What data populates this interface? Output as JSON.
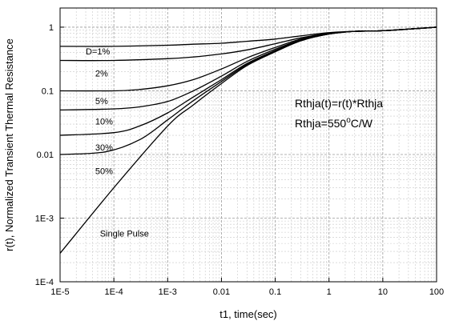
{
  "chart_data": {
    "type": "line",
    "xlabel": "t1, time(sec)",
    "ylabel": "r(t), Normalized Transient Thermal Resistance",
    "x_scale": "log",
    "y_scale": "log",
    "xlim": [
      1e-05,
      100
    ],
    "ylim": [
      0.0001,
      2
    ],
    "grid": true,
    "x_ticks": [
      {
        "value": 1e-05,
        "label": "1E-5"
      },
      {
        "value": 0.0001,
        "label": "1E-4"
      },
      {
        "value": 0.001,
        "label": "1E-3"
      },
      {
        "value": 0.01,
        "label": "0.01"
      },
      {
        "value": 0.1,
        "label": "0.1"
      },
      {
        "value": 1,
        "label": "1"
      },
      {
        "value": 10,
        "label": "10"
      },
      {
        "value": 100,
        "label": "100"
      }
    ],
    "y_ticks": [
      {
        "value": 0.0001,
        "label": "1E-4"
      },
      {
        "value": 0.001,
        "label": "1E-3"
      },
      {
        "value": 0.01,
        "label": "0.01"
      },
      {
        "value": 0.1,
        "label": "0.1"
      },
      {
        "value": 1,
        "label": "1"
      }
    ],
    "series": [
      {
        "name": "D=1%",
        "label_at": [
          3e-05,
          0.42
        ],
        "x": [
          1e-05,
          0.0001,
          0.001,
          0.003,
          0.01,
          0.03,
          0.1,
          0.3,
          1,
          3,
          10,
          100
        ],
        "y": [
          0.5,
          0.5,
          0.52,
          0.54,
          0.56,
          0.6,
          0.65,
          0.73,
          0.82,
          0.86,
          0.88,
          1.0
        ]
      },
      {
        "name": "2%",
        "label_at": [
          4.5e-05,
          0.19
        ],
        "x": [
          1e-05,
          0.0001,
          0.001,
          0.003,
          0.01,
          0.03,
          0.1,
          0.3,
          1,
          3,
          10,
          100
        ],
        "y": [
          0.3,
          0.3,
          0.32,
          0.34,
          0.38,
          0.44,
          0.55,
          0.68,
          0.8,
          0.86,
          0.88,
          1.0
        ]
      },
      {
        "name": "5%",
        "label_at": [
          4.5e-05,
          0.07
        ],
        "x": [
          1e-05,
          0.0001,
          0.0003,
          0.001,
          0.003,
          0.01,
          0.03,
          0.1,
          0.3,
          1,
          3,
          10,
          100
        ],
        "y": [
          0.1,
          0.1,
          0.105,
          0.12,
          0.15,
          0.22,
          0.33,
          0.48,
          0.65,
          0.79,
          0.86,
          0.88,
          1.0
        ]
      },
      {
        "name": "10%",
        "label_at": [
          4.5e-05,
          0.033
        ],
        "x": [
          1e-05,
          0.0001,
          0.0003,
          0.001,
          0.003,
          0.01,
          0.03,
          0.1,
          0.3,
          1,
          3,
          10,
          100
        ],
        "y": [
          0.05,
          0.052,
          0.056,
          0.068,
          0.1,
          0.17,
          0.29,
          0.45,
          0.63,
          0.78,
          0.86,
          0.88,
          1.0
        ]
      },
      {
        "name": "30%",
        "label_at": [
          4.5e-05,
          0.013
        ],
        "x": [
          1e-05,
          0.0001,
          0.0003,
          0.001,
          0.003,
          0.01,
          0.03,
          0.1,
          0.3,
          1,
          3,
          10,
          100
        ],
        "y": [
          0.02,
          0.022,
          0.028,
          0.045,
          0.08,
          0.15,
          0.27,
          0.43,
          0.62,
          0.78,
          0.86,
          0.88,
          1.0
        ]
      },
      {
        "name": "50%",
        "label_at": [
          4.5e-05,
          0.0055
        ],
        "x": [
          1e-05,
          7e-05,
          0.0003,
          0.001,
          0.003,
          0.01,
          0.03,
          0.1,
          0.3,
          1,
          3,
          10,
          100
        ],
        "y": [
          0.01,
          0.011,
          0.017,
          0.035,
          0.07,
          0.14,
          0.26,
          0.42,
          0.62,
          0.78,
          0.86,
          0.88,
          1.0
        ]
      },
      {
        "name": "Single Pulse",
        "label_at": [
          5.5e-05,
          0.00058
        ],
        "x": [
          1e-05,
          0.0001,
          0.001,
          0.003,
          0.01,
          0.03,
          0.1,
          0.3,
          1,
          3,
          10,
          100
        ],
        "y": [
          0.00028,
          0.003,
          0.028,
          0.06,
          0.13,
          0.25,
          0.41,
          0.61,
          0.78,
          0.86,
          0.88,
          1.0
        ]
      }
    ],
    "annotations": [
      {
        "text": "Rthja(t)=r(t)*Rthja",
        "sup": "",
        "suffix": ""
      },
      {
        "text": "Rthja=550",
        "sup": "o",
        "suffix": "C/W"
      }
    ]
  }
}
